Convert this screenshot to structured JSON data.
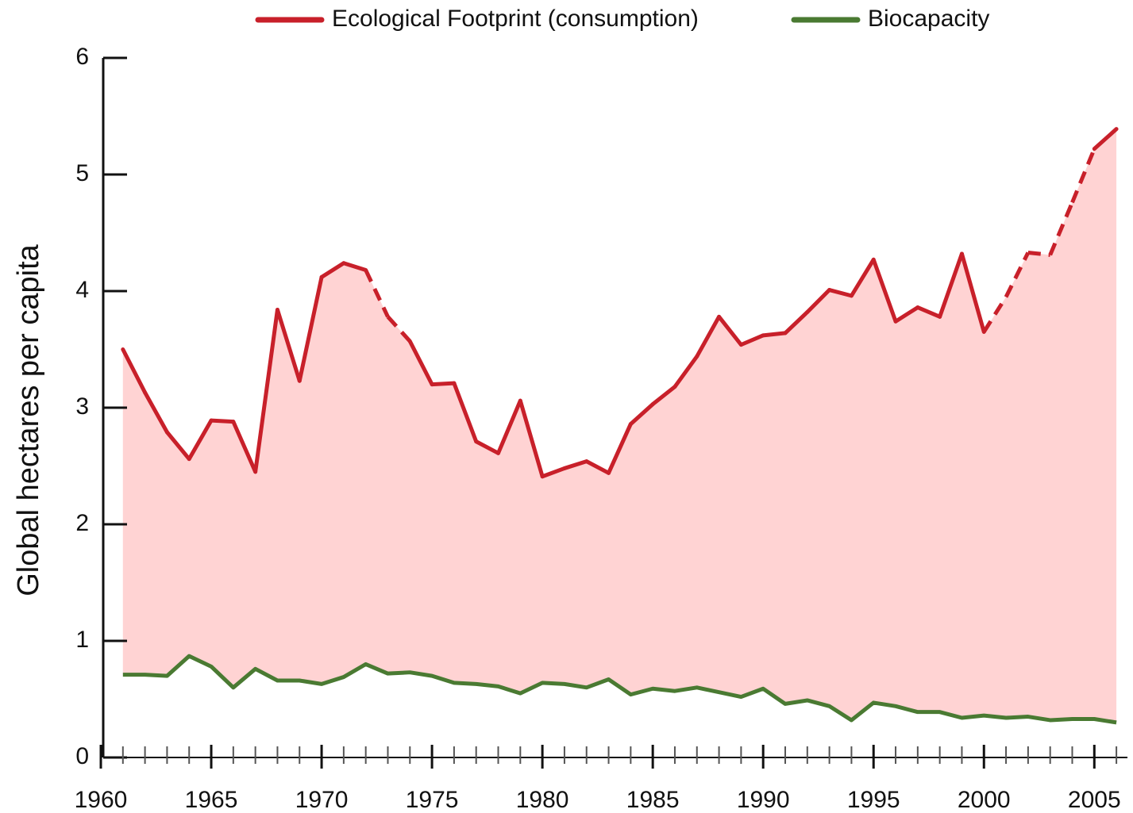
{
  "chart_data": {
    "type": "line",
    "y_label": "Global hectares per capita",
    "x": [
      1961,
      1962,
      1963,
      1964,
      1965,
      1966,
      1967,
      1968,
      1969,
      1970,
      1971,
      1972,
      1973,
      1974,
      1975,
      1976,
      1977,
      1978,
      1979,
      1980,
      1981,
      1982,
      1983,
      1984,
      1985,
      1986,
      1987,
      1988,
      1989,
      1990,
      1991,
      1992,
      1993,
      1994,
      1995,
      1996,
      1997,
      1998,
      1999,
      2000,
      2001,
      2002,
      2003,
      2004,
      2005,
      2006
    ],
    "series": [
      {
        "name": "Ecological Footprint (consumption)",
        "color": "#c8202a",
        "values": [
          3.5,
          3.13,
          2.79,
          2.56,
          2.89,
          2.88,
          2.45,
          3.84,
          3.23,
          4.12,
          4.24,
          4.18,
          3.78,
          3.57,
          3.2,
          3.21,
          2.71,
          2.61,
          3.06,
          2.41,
          2.48,
          2.54,
          2.44,
          2.86,
          3.03,
          3.18,
          3.44,
          3.78,
          3.54,
          3.62,
          3.64,
          3.82,
          4.01,
          3.96,
          4.27,
          3.74,
          3.86,
          3.78,
          4.32,
          3.65,
          3.95,
          4.33,
          4.31,
          4.76,
          5.22,
          5.39
        ],
        "dashed": [
          [
            1972,
            1974
          ],
          [
            2000,
            2005
          ]
        ]
      },
      {
        "name": "Biocapacity",
        "color": "#4a7a32",
        "values": [
          0.71,
          0.71,
          0.7,
          0.87,
          0.78,
          0.6,
          0.76,
          0.66,
          0.66,
          0.63,
          0.69,
          0.8,
          0.72,
          0.73,
          0.7,
          0.64,
          0.63,
          0.61,
          0.55,
          0.64,
          0.63,
          0.6,
          0.67,
          0.54,
          0.59,
          0.57,
          0.6,
          0.56,
          0.52,
          0.59,
          0.46,
          0.49,
          0.44,
          0.32,
          0.47,
          0.44,
          0.39,
          0.39,
          0.34,
          0.36,
          0.34,
          0.35,
          0.32,
          0.33,
          0.33,
          0.3
        ]
      }
    ],
    "fill_between": "#ffd3d3",
    "xlim": [
      1960,
      2006.5
    ],
    "xticks": [
      1960,
      1965,
      1970,
      1975,
      1980,
      1985,
      1990,
      1995,
      2000,
      2005
    ],
    "minor_xtick_step": 1,
    "ylim": [
      0,
      6
    ],
    "yticks": [
      0,
      1,
      2,
      3,
      4,
      5,
      6
    ],
    "legend": "top"
  }
}
